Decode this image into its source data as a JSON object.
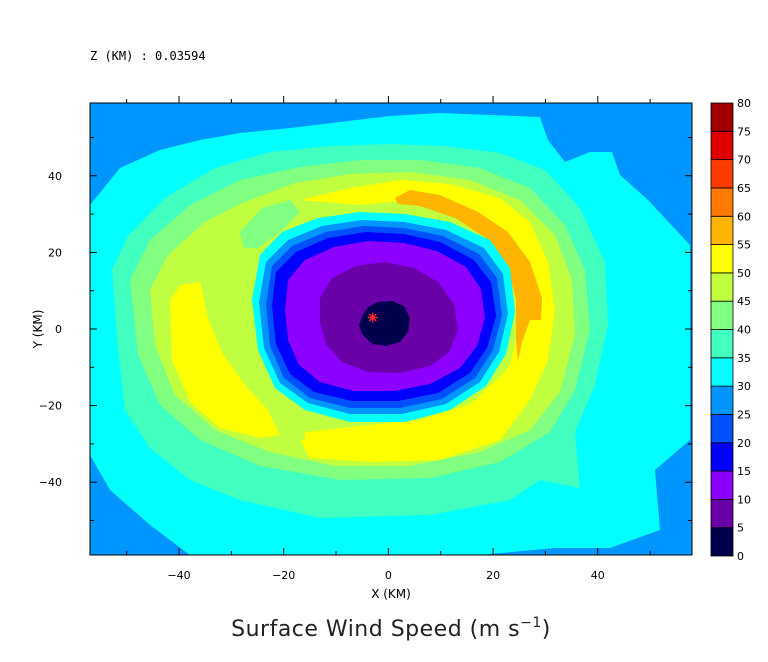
{
  "level_label": "Z (KM) : 0.03594",
  "title_prefix": "Surface Wind Speed (m s",
  "title_exponent": "−1",
  "title_suffix": ")",
  "chart_data": {
    "type": "heatmap",
    "xlabel": "X (KM)",
    "ylabel": "Y (KM)",
    "xlim": [
      -57,
      58
    ],
    "ylim": [
      -59,
      59
    ],
    "xticks": [
      -40,
      -20,
      0,
      20,
      40
    ],
    "yticks": [
      -40,
      -20,
      0,
      20,
      40
    ],
    "center_marker": {
      "x": -3,
      "y": 3,
      "color": "#ff2a2a"
    },
    "colorbar": {
      "ticks": [
        0,
        5,
        10,
        15,
        20,
        25,
        30,
        35,
        40,
        45,
        50,
        55,
        60,
        65,
        70,
        75,
        80
      ],
      "colors": [
        "#00004d",
        "#6a00a8",
        "#8b00ff",
        "#0000ff",
        "#0050ff",
        "#0096ff",
        "#00ffff",
        "#40ffbf",
        "#80ff80",
        "#bfff40",
        "#ffff00",
        "#ffb400",
        "#ff7800",
        "#ff3c00",
        "#e00000",
        "#a00000"
      ]
    },
    "fill_bands": [
      {
        "range": [
          25,
          30
        ],
        "color": "#0096ff"
      },
      {
        "range": [
          30,
          35
        ],
        "color": "#00ffff"
      },
      {
        "range": [
          35,
          40
        ],
        "color": "#40ffbf"
      },
      {
        "range": [
          40,
          45
        ],
        "color": "#80ff80"
      },
      {
        "range": [
          45,
          50
        ],
        "color": "#bfff40"
      },
      {
        "range": [
          50,
          55
        ],
        "color": "#ffff00"
      },
      {
        "range": [
          55,
          60
        ],
        "color": "#ffb400"
      },
      {
        "range": [
          20,
          25
        ],
        "color": "#0050ff"
      },
      {
        "range": [
          15,
          20
        ],
        "color": "#0000ff"
      },
      {
        "range": [
          10,
          15
        ],
        "color": "#8b00ff"
      },
      {
        "range": [
          5,
          10
        ],
        "color": "#6a00a8"
      },
      {
        "range": [
          0,
          5
        ],
        "color": "#00004d"
      }
    ]
  }
}
